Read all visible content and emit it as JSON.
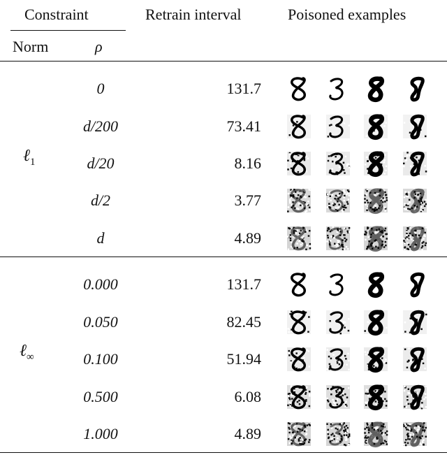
{
  "header": {
    "constraint": "Constraint",
    "norm": "Norm",
    "rho": "ρ",
    "retrain_interval": "Retrain interval",
    "poisoned_examples": "Poisoned examples"
  },
  "groups": [
    {
      "norm_base": "ℓ",
      "norm_sub": "1",
      "rows": [
        {
          "rho": "0",
          "interval": "131.7",
          "noise": 0.0
        },
        {
          "rho": "d/200",
          "interval": "73.41",
          "noise": 0.1
        },
        {
          "rho": "d/20",
          "interval": "8.16",
          "noise": 0.35
        },
        {
          "rho": "d/2",
          "interval": "3.77",
          "noise": 0.85
        },
        {
          "rho": "d",
          "interval": "4.89",
          "noise": 0.95
        }
      ]
    },
    {
      "norm_base": "ℓ",
      "norm_sub": "∞",
      "rows": [
        {
          "rho": "0.000",
          "interval": "131.7",
          "noise": 0.0
        },
        {
          "rho": "0.050",
          "interval": "82.45",
          "noise": 0.15
        },
        {
          "rho": "0.100",
          "interval": "51.94",
          "noise": 0.3
        },
        {
          "rho": "0.500",
          "interval": "6.08",
          "noise": 0.7
        },
        {
          "rho": "1.000",
          "interval": "4.89",
          "noise": 0.95
        }
      ]
    }
  ],
  "digit_icons": [
    "digit-8-icon",
    "digit-3-icon",
    "digit-8-bold-icon",
    "digit-8-slanted-icon"
  ]
}
